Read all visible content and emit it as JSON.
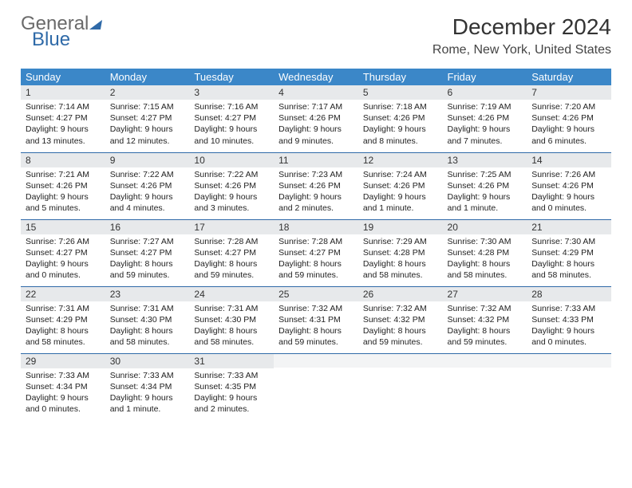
{
  "logo": {
    "word1": "General",
    "word2": "Blue"
  },
  "title": "December 2024",
  "location": "Rome, New York, United States",
  "header_bg": "#3b87c8",
  "daynum_bg": "#e7e9eb",
  "rule_color": "#2f6aa8",
  "weekdays": [
    "Sunday",
    "Monday",
    "Tuesday",
    "Wednesday",
    "Thursday",
    "Friday",
    "Saturday"
  ],
  "weeks": [
    [
      {
        "n": "1",
        "sr": "7:14 AM",
        "ss": "4:27 PM",
        "dl": "9 hours and 13 minutes."
      },
      {
        "n": "2",
        "sr": "7:15 AM",
        "ss": "4:27 PM",
        "dl": "9 hours and 12 minutes."
      },
      {
        "n": "3",
        "sr": "7:16 AM",
        "ss": "4:27 PM",
        "dl": "9 hours and 10 minutes."
      },
      {
        "n": "4",
        "sr": "7:17 AM",
        "ss": "4:26 PM",
        "dl": "9 hours and 9 minutes."
      },
      {
        "n": "5",
        "sr": "7:18 AM",
        "ss": "4:26 PM",
        "dl": "9 hours and 8 minutes."
      },
      {
        "n": "6",
        "sr": "7:19 AM",
        "ss": "4:26 PM",
        "dl": "9 hours and 7 minutes."
      },
      {
        "n": "7",
        "sr": "7:20 AM",
        "ss": "4:26 PM",
        "dl": "9 hours and 6 minutes."
      }
    ],
    [
      {
        "n": "8",
        "sr": "7:21 AM",
        "ss": "4:26 PM",
        "dl": "9 hours and 5 minutes."
      },
      {
        "n": "9",
        "sr": "7:22 AM",
        "ss": "4:26 PM",
        "dl": "9 hours and 4 minutes."
      },
      {
        "n": "10",
        "sr": "7:22 AM",
        "ss": "4:26 PM",
        "dl": "9 hours and 3 minutes."
      },
      {
        "n": "11",
        "sr": "7:23 AM",
        "ss": "4:26 PM",
        "dl": "9 hours and 2 minutes."
      },
      {
        "n": "12",
        "sr": "7:24 AM",
        "ss": "4:26 PM",
        "dl": "9 hours and 1 minute."
      },
      {
        "n": "13",
        "sr": "7:25 AM",
        "ss": "4:26 PM",
        "dl": "9 hours and 1 minute."
      },
      {
        "n": "14",
        "sr": "7:26 AM",
        "ss": "4:26 PM",
        "dl": "9 hours and 0 minutes."
      }
    ],
    [
      {
        "n": "15",
        "sr": "7:26 AM",
        "ss": "4:27 PM",
        "dl": "9 hours and 0 minutes."
      },
      {
        "n": "16",
        "sr": "7:27 AM",
        "ss": "4:27 PM",
        "dl": "8 hours and 59 minutes."
      },
      {
        "n": "17",
        "sr": "7:28 AM",
        "ss": "4:27 PM",
        "dl": "8 hours and 59 minutes."
      },
      {
        "n": "18",
        "sr": "7:28 AM",
        "ss": "4:27 PM",
        "dl": "8 hours and 59 minutes."
      },
      {
        "n": "19",
        "sr": "7:29 AM",
        "ss": "4:28 PM",
        "dl": "8 hours and 58 minutes."
      },
      {
        "n": "20",
        "sr": "7:30 AM",
        "ss": "4:28 PM",
        "dl": "8 hours and 58 minutes."
      },
      {
        "n": "21",
        "sr": "7:30 AM",
        "ss": "4:29 PM",
        "dl": "8 hours and 58 minutes."
      }
    ],
    [
      {
        "n": "22",
        "sr": "7:31 AM",
        "ss": "4:29 PM",
        "dl": "8 hours and 58 minutes."
      },
      {
        "n": "23",
        "sr": "7:31 AM",
        "ss": "4:30 PM",
        "dl": "8 hours and 58 minutes."
      },
      {
        "n": "24",
        "sr": "7:31 AM",
        "ss": "4:30 PM",
        "dl": "8 hours and 58 minutes."
      },
      {
        "n": "25",
        "sr": "7:32 AM",
        "ss": "4:31 PM",
        "dl": "8 hours and 59 minutes."
      },
      {
        "n": "26",
        "sr": "7:32 AM",
        "ss": "4:32 PM",
        "dl": "8 hours and 59 minutes."
      },
      {
        "n": "27",
        "sr": "7:32 AM",
        "ss": "4:32 PM",
        "dl": "8 hours and 59 minutes."
      },
      {
        "n": "28",
        "sr": "7:33 AM",
        "ss": "4:33 PM",
        "dl": "9 hours and 0 minutes."
      }
    ],
    [
      {
        "n": "29",
        "sr": "7:33 AM",
        "ss": "4:34 PM",
        "dl": "9 hours and 0 minutes."
      },
      {
        "n": "30",
        "sr": "7:33 AM",
        "ss": "4:34 PM",
        "dl": "9 hours and 1 minute."
      },
      {
        "n": "31",
        "sr": "7:33 AM",
        "ss": "4:35 PM",
        "dl": "9 hours and 2 minutes."
      },
      null,
      null,
      null,
      null
    ]
  ],
  "labels": {
    "sunrise": "Sunrise:",
    "sunset": "Sunset:",
    "daylight": "Daylight:"
  }
}
